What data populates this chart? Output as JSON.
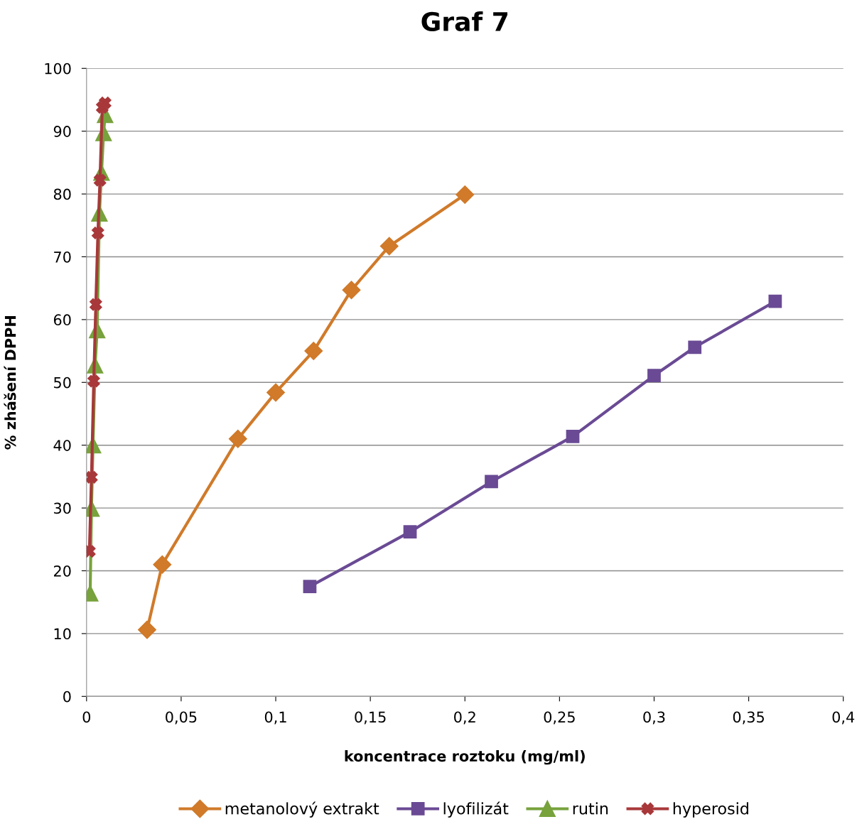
{
  "chart_data": {
    "type": "line",
    "title": "Graf 7",
    "xlabel": "koncentrace roztoku (mg/ml)",
    "ylabel": "% zhášení DPPH",
    "xlim": [
      0,
      0.4
    ],
    "xticks": [
      {
        "value": 0,
        "label": "0"
      },
      {
        "value": 0.05,
        "label": "0,05"
      },
      {
        "value": 0.1,
        "label": "0,1"
      },
      {
        "value": 0.15,
        "label": "0,15"
      },
      {
        "value": 0.2,
        "label": "0,2"
      },
      {
        "value": 0.25,
        "label": "0,25"
      },
      {
        "value": 0.3,
        "label": "0,3"
      },
      {
        "value": 0.35,
        "label": "0,35"
      },
      {
        "value": 0.4,
        "label": "0,4"
      }
    ],
    "ylim": [
      0,
      100
    ],
    "yticks": [
      0,
      10,
      20,
      30,
      40,
      50,
      60,
      70,
      80,
      90,
      100
    ],
    "grid": "y",
    "legend": "bottom",
    "line_style": "solid",
    "series": [
      {
        "name": "metanolový extrakt",
        "color": "#d07a2a",
        "marker": "diamond",
        "x": [
          0.032,
          0.04,
          0.08,
          0.1,
          0.12,
          0.14,
          0.16,
          0.2
        ],
        "values": [
          10.6,
          21.0,
          41.0,
          48.4,
          55.0,
          64.7,
          71.7,
          79.9
        ]
      },
      {
        "name": "lyofilizát",
        "color": "#6a4a94",
        "marker": "square",
        "x": [
          0.118,
          0.171,
          0.214,
          0.257,
          0.3,
          0.3215,
          0.364
        ],
        "values": [
          17.5,
          26.2,
          34.2,
          41.4,
          51.1,
          55.6,
          62.9
        ]
      },
      {
        "name": "rutin",
        "color": "#77a23c",
        "marker": "triangle",
        "x": [
          0.0019,
          0.0026,
          0.0034,
          0.0045,
          0.0056,
          0.0068,
          0.0079,
          0.009,
          0.0098
        ],
        "values": [
          16.4,
          29.9,
          40.0,
          52.7,
          58.3,
          76.9,
          83.4,
          89.7,
          92.6
        ]
      },
      {
        "name": "hyperosid",
        "color": "#a8383a",
        "marker": "cross",
        "x": [
          0.0015,
          0.0026,
          0.0038,
          0.0049,
          0.006,
          0.0071,
          0.0083,
          0.0098
        ],
        "values": [
          23.1,
          34.9,
          50.2,
          62.4,
          73.8,
          82.2,
          93.8,
          94.5
        ]
      }
    ]
  }
}
